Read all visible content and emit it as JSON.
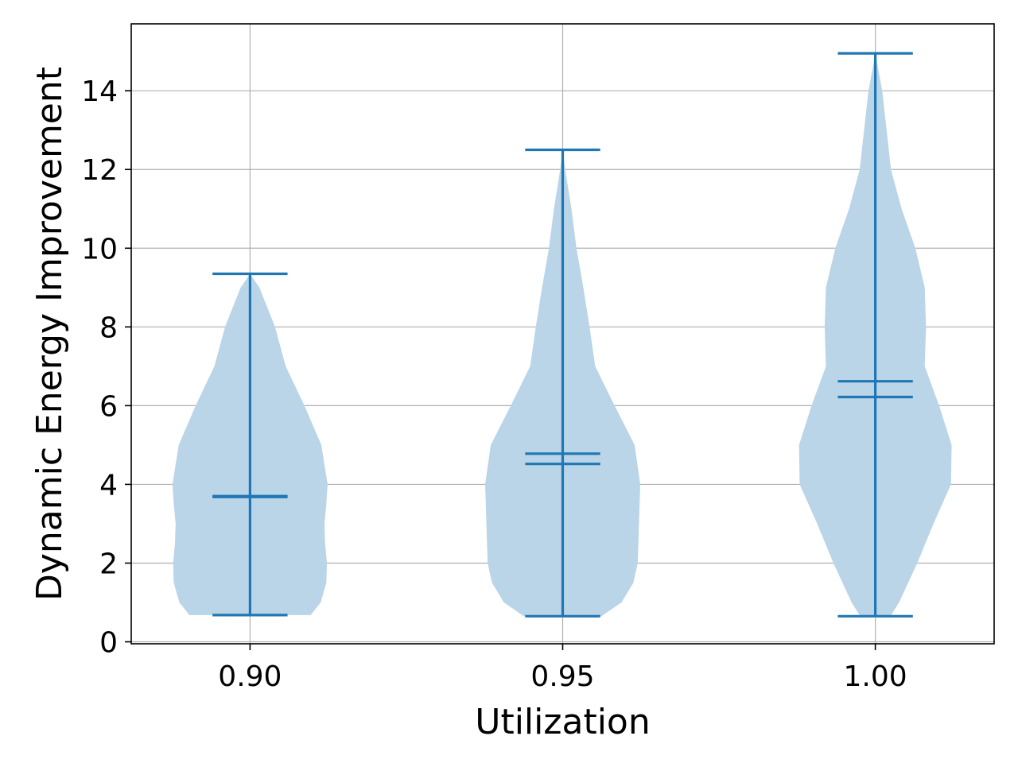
{
  "chart_data": {
    "type": "violin",
    "title": "",
    "xlabel": "Utilization",
    "ylabel": "Dynamic Energy Improvement",
    "xlim": [
      0.881,
      1.019
    ],
    "ylim": [
      -0.05,
      15.7
    ],
    "grid": true,
    "x_ticks": [
      {
        "value": 0.9,
        "label": "0.90"
      },
      {
        "value": 0.95,
        "label": "0.95"
      },
      {
        "value": 1.0,
        "label": "1.00"
      }
    ],
    "y_ticks": [
      {
        "value": 0,
        "label": "0"
      },
      {
        "value": 2,
        "label": "2"
      },
      {
        "value": 4,
        "label": "4"
      },
      {
        "value": 6,
        "label": "6"
      },
      {
        "value": 8,
        "label": "8"
      },
      {
        "value": 10,
        "label": "10"
      },
      {
        "value": 12,
        "label": "12"
      },
      {
        "value": 14,
        "label": "14"
      }
    ],
    "colors": {
      "body": "#bad4e8",
      "lines": "#1f77b4",
      "grid": "#b0b0b0"
    },
    "violins": [
      {
        "x": 0.9,
        "min": 0.68,
        "max": 9.35,
        "mean": 3.68,
        "median": 3.7,
        "profile": [
          [
            0.68,
            0.0097
          ],
          [
            1.0,
            0.0113
          ],
          [
            1.5,
            0.0122
          ],
          [
            2.0,
            0.0123
          ],
          [
            2.5,
            0.012
          ],
          [
            3.0,
            0.0119
          ],
          [
            3.5,
            0.0122
          ],
          [
            4.0,
            0.0124
          ],
          [
            5.0,
            0.0114
          ],
          [
            6.0,
            0.0087
          ],
          [
            7.0,
            0.0057
          ],
          [
            8.0,
            0.004
          ],
          [
            9.0,
            0.0015
          ],
          [
            9.35,
            0.0
          ]
        ]
      },
      {
        "x": 0.95,
        "min": 0.65,
        "max": 12.5,
        "mean": 4.78,
        "median": 4.52,
        "profile": [
          [
            0.65,
            0.0062
          ],
          [
            1.0,
            0.0094
          ],
          [
            1.5,
            0.0113
          ],
          [
            2.0,
            0.012
          ],
          [
            3.0,
            0.0122
          ],
          [
            4.0,
            0.0124
          ],
          [
            5.0,
            0.0115
          ],
          [
            6.0,
            0.0083
          ],
          [
            7.0,
            0.0052
          ],
          [
            8.0,
            0.0043
          ],
          [
            9.0,
            0.0033
          ],
          [
            10.0,
            0.0022
          ],
          [
            11.0,
            0.0014
          ],
          [
            12.0,
            0.0004
          ],
          [
            12.5,
            0.0
          ]
        ]
      },
      {
        "x": 1.0,
        "min": 0.65,
        "max": 14.95,
        "mean": 6.62,
        "median": 6.22,
        "profile": [
          [
            0.65,
            0.0024
          ],
          [
            1.0,
            0.0038
          ],
          [
            2.0,
            0.0067
          ],
          [
            3.0,
            0.0093
          ],
          [
            4.0,
            0.0121
          ],
          [
            5.0,
            0.0122
          ],
          [
            6.0,
            0.0102
          ],
          [
            7.0,
            0.0079
          ],
          [
            8.0,
            0.0081
          ],
          [
            9.0,
            0.0079
          ],
          [
            10.0,
            0.0064
          ],
          [
            11.0,
            0.0042
          ],
          [
            12.0,
            0.0025
          ],
          [
            13.0,
            0.0018
          ],
          [
            14.0,
            0.0011
          ],
          [
            14.95,
            0.0
          ]
        ]
      }
    ]
  }
}
